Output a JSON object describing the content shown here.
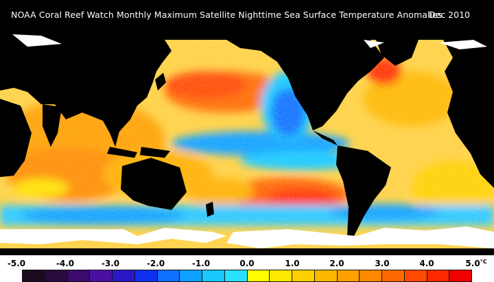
{
  "title": "NOAA Coral Reef Watch Monthly Maximum Satellite Nighttime Sea Surface Temperature Anomalies",
  "date": "Dec 2010",
  "map": {
    "land_color": "#000000",
    "ice_color": "#ffffff"
  },
  "legend": {
    "ticks": [
      {
        "label": "-5.0"
      },
      {
        "label": "-4.0"
      },
      {
        "label": "-3.0"
      },
      {
        "label": "-2.0"
      },
      {
        "label": "-1.0"
      },
      {
        "label": "0.0"
      },
      {
        "label": "1.0"
      },
      {
        "label": "2.0"
      },
      {
        "label": "3.0"
      },
      {
        "label": "4.0"
      },
      {
        "label": "5.0"
      }
    ],
    "unit": "°C",
    "colors": [
      "#1c0a20",
      "#2a0a3e",
      "#3a0a6e",
      "#4a10a0",
      "#2a18c8",
      "#1030f0",
      "#1070ff",
      "#10a0ff",
      "#18c8ff",
      "#28e0ff",
      "#ffff00",
      "#ffe800",
      "#ffd000",
      "#ffb800",
      "#ffa000",
      "#ff8800",
      "#ff6800",
      "#ff4800",
      "#ff2800",
      "#f00000"
    ]
  }
}
